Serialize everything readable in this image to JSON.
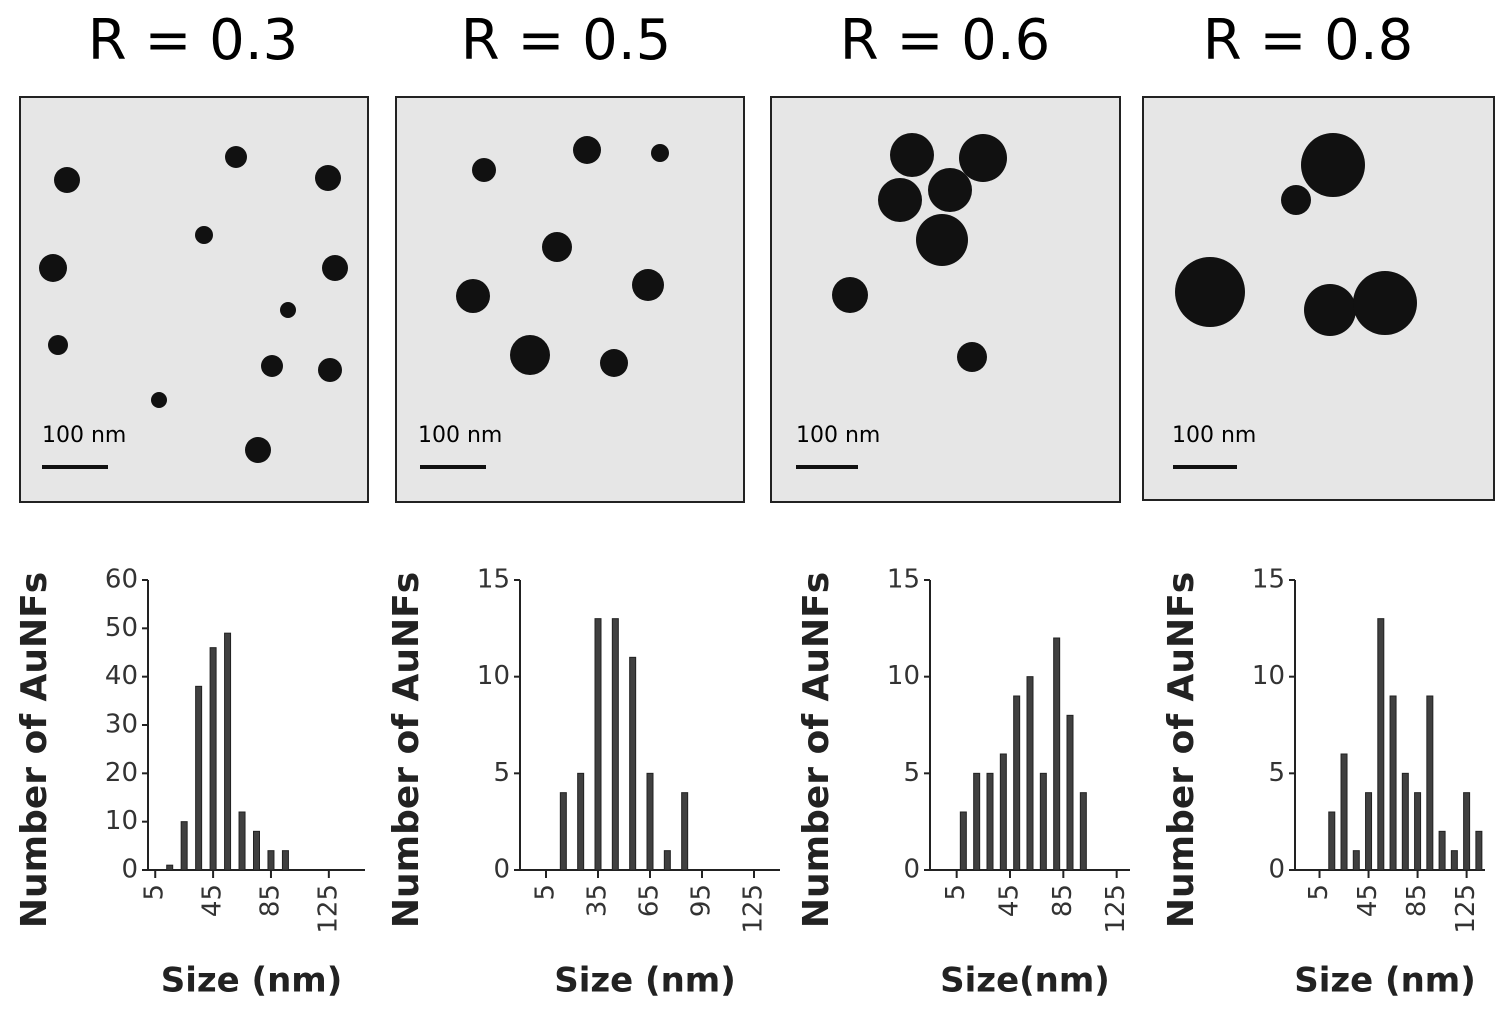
{
  "panels": [
    {
      "title": "R = 0.3",
      "scale_bar": "100 nm"
    },
    {
      "title": "R = 0.5",
      "scale_bar": "100 nm"
    },
    {
      "title": "R = 0.6",
      "scale_bar": "100 nm"
    },
    {
      "title": "R = 0.8",
      "scale_bar": "100 nm"
    }
  ],
  "chart_data": [
    {
      "type": "bar",
      "x_label": "Size (nm)",
      "y_label": "Number of AuNFs",
      "color": "#404040",
      "x": [
        15,
        25,
        35,
        45,
        55,
        65,
        75,
        85,
        95
      ],
      "values": [
        1,
        10,
        38,
        46,
        49,
        12,
        8,
        4,
        4
      ],
      "xlim": [
        0,
        150
      ],
      "xticks": [
        5,
        45,
        85,
        125
      ],
      "ylim": [
        0,
        60
      ],
      "yticks": [
        0,
        10,
        20,
        30,
        40,
        50,
        60
      ]
    },
    {
      "type": "bar",
      "x_label": "Size (nm)",
      "y_label": "Number of AuNFs",
      "color": "#404040",
      "x": [
        15,
        25,
        35,
        45,
        55,
        65,
        75,
        85
      ],
      "values": [
        4,
        5,
        13,
        13,
        11,
        5,
        1,
        4
      ],
      "xlim": [
        -10,
        140
      ],
      "xticks": [
        5,
        35,
        65,
        95,
        125
      ],
      "ylim": [
        0,
        15
      ],
      "yticks": [
        0,
        5,
        10,
        15
      ]
    },
    {
      "type": "bar",
      "x_label": "Size(nm)",
      "y_label": "Number of AuNFs",
      "color": "#404040",
      "x": [
        10,
        20,
        30,
        40,
        50,
        60,
        70,
        80,
        90,
        100
      ],
      "values": [
        3,
        5,
        5,
        6,
        9,
        10,
        5,
        12,
        8,
        4
      ],
      "xlim": [
        -15,
        135
      ],
      "xticks": [
        5,
        45,
        85,
        125
      ],
      "ylim": [
        0,
        15
      ],
      "yticks": [
        0,
        5,
        10,
        15
      ]
    },
    {
      "type": "bar",
      "x_label": "Size (nm)",
      "y_label": "Number of AuNFs",
      "color": "#404040",
      "x": [
        15,
        25,
        35,
        45,
        55,
        65,
        75,
        85,
        95,
        105,
        115,
        125,
        135
      ],
      "values": [
        3,
        6,
        1,
        4,
        13,
        9,
        5,
        4,
        9,
        2,
        1,
        4,
        2
      ],
      "xlim": [
        -15,
        140
      ],
      "xticks": [
        5,
        45,
        85,
        125
      ],
      "ylim": [
        0,
        15
      ],
      "yticks": [
        0,
        5,
        10,
        15
      ]
    }
  ]
}
